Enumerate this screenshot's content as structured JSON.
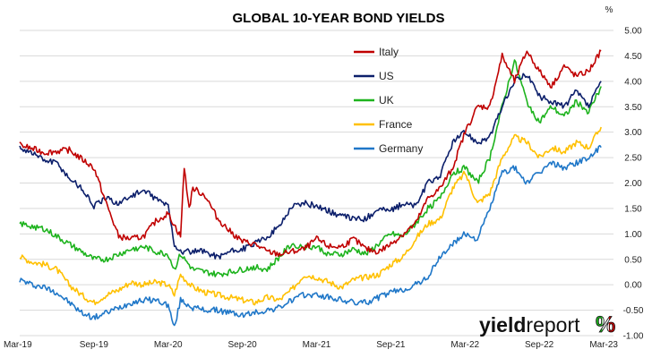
{
  "chart_data": {
    "type": "line",
    "title": "GLOBAL 10-YEAR BOND YIELDS",
    "unit_label": "%",
    "xlabel": "",
    "ylabel": "",
    "ylim": [
      -1.0,
      5.0
    ],
    "y_ticks": [
      "5.00",
      "4.50",
      "4.00",
      "3.50",
      "3.00",
      "2.50",
      "2.00",
      "1.50",
      "1.00",
      "0.50",
      "0.00",
      "-0.50",
      "-1.00"
    ],
    "x_ticks": [
      "Mar-19",
      "Sep-19",
      "Mar-20",
      "Sep-20",
      "Mar-21",
      "Sep-21",
      "Mar-22",
      "Sep-22",
      "Mar-23"
    ],
    "grid": "horizontal",
    "legend_position": "top-center",
    "series": [
      {
        "name": "Italy",
        "color": "#c00000",
        "points": [
          [
            0,
            2.75
          ],
          [
            2,
            2.6
          ],
          [
            4,
            2.65
          ],
          [
            6,
            2.3
          ],
          [
            7,
            1.6
          ],
          [
            8,
            0.95
          ],
          [
            9,
            0.9
          ],
          [
            10,
            0.95
          ],
          [
            11,
            1.25
          ],
          [
            12,
            1.4
          ],
          [
            13,
            0.95
          ],
          [
            13.3,
            2.3
          ],
          [
            13.7,
            1.5
          ],
          [
            14,
            1.9
          ],
          [
            15,
            1.75
          ],
          [
            16,
            1.3
          ],
          [
            17,
            1.05
          ],
          [
            18,
            0.85
          ],
          [
            19,
            0.8
          ],
          [
            20,
            0.65
          ],
          [
            21,
            0.6
          ],
          [
            22,
            0.65
          ],
          [
            23,
            0.7
          ],
          [
            24,
            0.9
          ],
          [
            25,
            0.75
          ],
          [
            26,
            0.75
          ],
          [
            27,
            0.9
          ],
          [
            28,
            0.7
          ],
          [
            29,
            0.65
          ],
          [
            30,
            0.8
          ],
          [
            31,
            1.0
          ],
          [
            32,
            1.2
          ],
          [
            33,
            1.7
          ],
          [
            34,
            1.9
          ],
          [
            35,
            2.3
          ],
          [
            36,
            3.0
          ],
          [
            37,
            3.5
          ],
          [
            38,
            3.5
          ],
          [
            39,
            4.5
          ],
          [
            40,
            4.0
          ],
          [
            41,
            4.6
          ],
          [
            42,
            4.2
          ],
          [
            43,
            3.9
          ],
          [
            44,
            4.3
          ],
          [
            45,
            4.1
          ],
          [
            46,
            4.2
          ],
          [
            47,
            4.6
          ]
        ]
      },
      {
        "name": "US",
        "color": "#0c1f6b",
        "points": [
          [
            0,
            2.7
          ],
          [
            1,
            2.6
          ],
          [
            2,
            2.45
          ],
          [
            3,
            2.4
          ],
          [
            4,
            2.1
          ],
          [
            5,
            1.9
          ],
          [
            6,
            1.55
          ],
          [
            7,
            1.7
          ],
          [
            8,
            1.6
          ],
          [
            9,
            1.75
          ],
          [
            10,
            1.85
          ],
          [
            11,
            1.7
          ],
          [
            12,
            1.55
          ],
          [
            12.5,
            0.8
          ],
          [
            13,
            0.65
          ],
          [
            14,
            0.65
          ],
          [
            15,
            0.65
          ],
          [
            16,
            0.55
          ],
          [
            17,
            0.65
          ],
          [
            18,
            0.7
          ],
          [
            19,
            0.8
          ],
          [
            20,
            0.95
          ],
          [
            21,
            1.15
          ],
          [
            22,
            1.55
          ],
          [
            23,
            1.6
          ],
          [
            24,
            1.55
          ],
          [
            25,
            1.45
          ],
          [
            26,
            1.35
          ],
          [
            27,
            1.3
          ],
          [
            28,
            1.3
          ],
          [
            29,
            1.5
          ],
          [
            30,
            1.45
          ],
          [
            31,
            1.6
          ],
          [
            32,
            1.55
          ],
          [
            33,
            2.0
          ],
          [
            34,
            2.15
          ],
          [
            35,
            2.8
          ],
          [
            36,
            3.0
          ],
          [
            37,
            2.8
          ],
          [
            38,
            2.9
          ],
          [
            39,
            3.5
          ],
          [
            40,
            4.0
          ],
          [
            41,
            4.15
          ],
          [
            42,
            3.7
          ],
          [
            43,
            3.6
          ],
          [
            44,
            3.5
          ],
          [
            45,
            3.8
          ],
          [
            46,
            3.5
          ],
          [
            47,
            4.0
          ]
        ]
      },
      {
        "name": "UK",
        "color": "#1db31d",
        "points": [
          [
            0,
            1.2
          ],
          [
            1,
            1.15
          ],
          [
            2,
            1.1
          ],
          [
            3,
            0.95
          ],
          [
            4,
            0.8
          ],
          [
            5,
            0.65
          ],
          [
            6,
            0.5
          ],
          [
            7,
            0.5
          ],
          [
            8,
            0.6
          ],
          [
            9,
            0.7
          ],
          [
            10,
            0.75
          ],
          [
            11,
            0.65
          ],
          [
            12,
            0.6
          ],
          [
            12.5,
            0.3
          ],
          [
            13,
            0.6
          ],
          [
            14,
            0.3
          ],
          [
            15,
            0.25
          ],
          [
            16,
            0.2
          ],
          [
            17,
            0.25
          ],
          [
            18,
            0.3
          ],
          [
            19,
            0.35
          ],
          [
            20,
            0.3
          ],
          [
            21,
            0.55
          ],
          [
            22,
            0.8
          ],
          [
            23,
            0.75
          ],
          [
            24,
            0.75
          ],
          [
            25,
            0.6
          ],
          [
            26,
            0.6
          ],
          [
            27,
            0.7
          ],
          [
            28,
            0.6
          ],
          [
            29,
            0.8
          ],
          [
            30,
            1.0
          ],
          [
            31,
            0.95
          ],
          [
            32,
            1.2
          ],
          [
            33,
            1.5
          ],
          [
            34,
            1.7
          ],
          [
            35,
            2.2
          ],
          [
            36,
            2.3
          ],
          [
            37,
            2.0
          ],
          [
            38,
            2.5
          ],
          [
            39,
            3.5
          ],
          [
            40,
            4.4
          ],
          [
            41,
            3.6
          ],
          [
            42,
            3.2
          ],
          [
            43,
            3.5
          ],
          [
            44,
            3.3
          ],
          [
            45,
            3.6
          ],
          [
            46,
            3.4
          ],
          [
            47,
            3.9
          ]
        ]
      },
      {
        "name": "France",
        "color": "#ffc000",
        "points": [
          [
            0,
            0.55
          ],
          [
            1,
            0.45
          ],
          [
            2,
            0.4
          ],
          [
            3,
            0.3
          ],
          [
            4,
            0.0
          ],
          [
            5,
            -0.2
          ],
          [
            6,
            -0.35
          ],
          [
            7,
            -0.2
          ],
          [
            8,
            -0.1
          ],
          [
            9,
            0.05
          ],
          [
            10,
            0.0
          ],
          [
            11,
            0.05
          ],
          [
            12,
            0.0
          ],
          [
            12.5,
            -0.2
          ],
          [
            13,
            0.2
          ],
          [
            14,
            -0.05
          ],
          [
            15,
            -0.15
          ],
          [
            16,
            -0.2
          ],
          [
            17,
            -0.25
          ],
          [
            18,
            -0.3
          ],
          [
            19,
            -0.35
          ],
          [
            20,
            -0.25
          ],
          [
            21,
            -0.3
          ],
          [
            22,
            -0.1
          ],
          [
            23,
            0.2
          ],
          [
            24,
            0.15
          ],
          [
            25,
            0.05
          ],
          [
            26,
            -0.05
          ],
          [
            27,
            0.1
          ],
          [
            28,
            0.15
          ],
          [
            29,
            0.2
          ],
          [
            30,
            0.4
          ],
          [
            31,
            0.55
          ],
          [
            32,
            0.9
          ],
          [
            33,
            1.2
          ],
          [
            34,
            1.3
          ],
          [
            35,
            1.9
          ],
          [
            36,
            2.2
          ],
          [
            37,
            1.6
          ],
          [
            38,
            1.8
          ],
          [
            39,
            2.5
          ],
          [
            40,
            2.9
          ],
          [
            41,
            2.8
          ],
          [
            42,
            2.5
          ],
          [
            43,
            2.7
          ],
          [
            44,
            2.6
          ],
          [
            45,
            2.8
          ],
          [
            46,
            2.7
          ],
          [
            47,
            3.1
          ]
        ]
      },
      {
        "name": "Germany",
        "color": "#1f77c8",
        "points": [
          [
            0,
            0.1
          ],
          [
            1,
            0.0
          ],
          [
            2,
            -0.05
          ],
          [
            3,
            -0.15
          ],
          [
            4,
            -0.35
          ],
          [
            5,
            -0.55
          ],
          [
            6,
            -0.65
          ],
          [
            7,
            -0.55
          ],
          [
            8,
            -0.45
          ],
          [
            9,
            -0.35
          ],
          [
            10,
            -0.3
          ],
          [
            11,
            -0.3
          ],
          [
            12,
            -0.4
          ],
          [
            12.5,
            -0.85
          ],
          [
            13,
            -0.3
          ],
          [
            14,
            -0.45
          ],
          [
            15,
            -0.5
          ],
          [
            16,
            -0.5
          ],
          [
            17,
            -0.55
          ],
          [
            18,
            -0.6
          ],
          [
            19,
            -0.55
          ],
          [
            20,
            -0.5
          ],
          [
            21,
            -0.45
          ],
          [
            22,
            -0.3
          ],
          [
            23,
            -0.2
          ],
          [
            24,
            -0.2
          ],
          [
            25,
            -0.25
          ],
          [
            26,
            -0.3
          ],
          [
            27,
            -0.35
          ],
          [
            28,
            -0.35
          ],
          [
            29,
            -0.25
          ],
          [
            30,
            -0.15
          ],
          [
            31,
            -0.1
          ],
          [
            32,
            0.0
          ],
          [
            33,
            0.15
          ],
          [
            34,
            0.55
          ],
          [
            35,
            0.8
          ],
          [
            36,
            1.0
          ],
          [
            37,
            0.9
          ],
          [
            38,
            1.5
          ],
          [
            39,
            2.2
          ],
          [
            40,
            2.3
          ],
          [
            41,
            2.0
          ],
          [
            42,
            2.2
          ],
          [
            43,
            2.4
          ],
          [
            44,
            2.3
          ],
          [
            45,
            2.4
          ],
          [
            46,
            2.5
          ],
          [
            47,
            2.7
          ]
        ]
      }
    ]
  },
  "branding": {
    "logo_word_bold": "yield",
    "logo_word_light": "report",
    "logo_symbol": "%",
    "logo_colors": [
      "#1db31d",
      "#ffffff",
      "#c00000"
    ]
  }
}
